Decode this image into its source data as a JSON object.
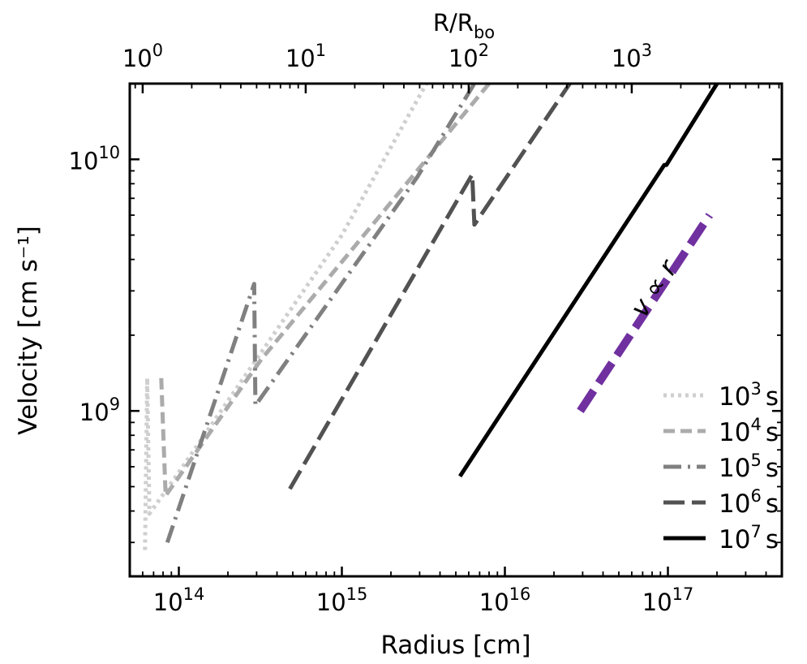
{
  "chart_data": {
    "type": "line",
    "xscale": "log",
    "yscale": "log",
    "xlabel": "Radius [cm]",
    "ylabel": "Velocity [cm s⁻¹]",
    "top_xlabel": "R/R",
    "top_xlabel_sub": "bo",
    "xlim": [
      50000000000000.0,
      5e+17
    ],
    "ylim": [
      220000000.0,
      20000000000.0
    ],
    "x_ticks": [
      {
        "value": 100000000000000.0,
        "base": "10",
        "exp": "14"
      },
      {
        "value": 1000000000000000.0,
        "base": "10",
        "exp": "15"
      },
      {
        "value": 1e+16,
        "base": "10",
        "exp": "16"
      },
      {
        "value": 1e+17,
        "base": "10",
        "exp": "17"
      }
    ],
    "y_ticks": [
      {
        "value": 1000000000.0,
        "base": "10",
        "exp": "9"
      },
      {
        "value": 10000000000.0,
        "base": "10",
        "exp": "10"
      }
    ],
    "top_ticks": [
      {
        "value": 60000000000000.0,
        "base": "10",
        "exp": "0"
      },
      {
        "value": 600000000000000.0,
        "base": "10",
        "exp": "1"
      },
      {
        "value": 6000000000000000.0,
        "base": "10",
        "exp": "2"
      },
      {
        "value": 6e+16,
        "base": "10",
        "exp": "3"
      }
    ],
    "series": [
      {
        "name": "10^3 s",
        "label_base": "10",
        "label_exp": "3",
        "label_unit": "s",
        "color": "#cfcfcf",
        "dash": "4,5",
        "points": [
          [
            62000000000000.0,
            280000000.0
          ],
          [
            64000000000000.0,
            1350000000.0
          ],
          [
            66000000000000.0,
            390000000.0
          ],
          [
            100000000000000.0,
            570000000.0
          ],
          [
            1000000000000000.0,
            5000000000.0
          ],
          [
            3300000000000000.0,
            20000000000.0
          ]
        ]
      },
      {
        "name": "10^4 s",
        "label_base": "10",
        "label_exp": "4",
        "label_unit": "s",
        "color": "#ababab",
        "dash": "14,7",
        "points": [
          [
            78000000000000.0,
            1350000000.0
          ],
          [
            83000000000000.0,
            460000000.0
          ],
          [
            320000000000000.0,
            1600000000.0
          ],
          [
            8000000000000000.0,
            20000000000.0
          ]
        ]
      },
      {
        "name": "10^5 s",
        "label_base": "10",
        "label_exp": "5",
        "label_unit": "s",
        "color": "#808080",
        "dash": "22,8,3,8",
        "points": [
          [
            85000000000000.0,
            300000000.0
          ],
          [
            290000000000000.0,
            3200000000.0
          ],
          [
            295000000000000.0,
            1050000000.0
          ],
          [
            2900000000000000.0,
            8500000000.0
          ],
          [
            6500000000000000.0,
            20000000000.0
          ]
        ]
      },
      {
        "name": "10^6 s",
        "label_base": "10",
        "label_exp": "6",
        "label_unit": "s",
        "color": "#525252",
        "dash": "26,9",
        "points": [
          [
            480000000000000.0,
            490000000.0
          ],
          [
            6300000000000000.0,
            8700000000.0
          ],
          [
            6500000000000000.0,
            5500000000.0
          ],
          [
            2.5e+16,
            20000000000.0
          ]
        ]
      },
      {
        "name": "10^7 s",
        "label_base": "10",
        "label_exp": "7",
        "label_unit": "s",
        "color": "#000000",
        "dash": "",
        "points": [
          [
            5300000000000000.0,
            550000000.0
          ],
          [
            9.5e+16,
            9500000000.0
          ],
          [
            9.8e+16,
            9500000000.0
          ],
          [
            2e+17,
            20000000000.0
          ]
        ]
      }
    ],
    "annotation": {
      "text": "v ∝ r",
      "color": "#7030a0",
      "line": [
        [
          2.9e+16,
          1000000000.0
        ],
        [
          1.8e+17,
          6000000000.0
        ]
      ]
    },
    "legend_position": "lower-right"
  }
}
